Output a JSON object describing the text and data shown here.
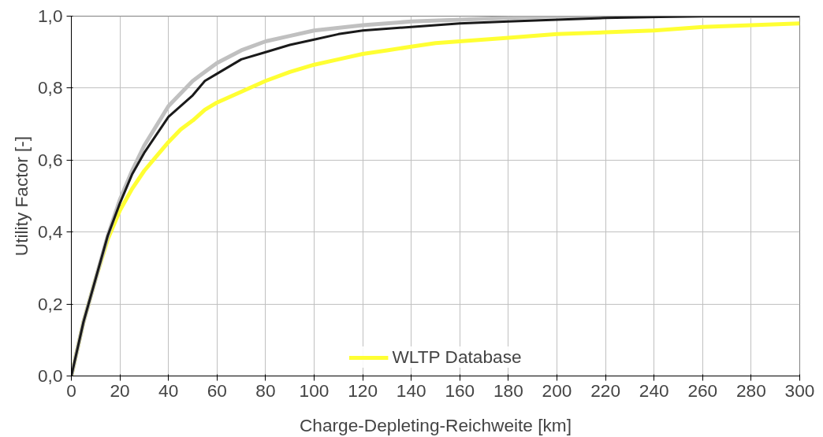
{
  "chart_data": {
    "type": "line",
    "xlabel": "Charge-Depleting-Reichweite [km]",
    "ylabel": "Utility Factor [-]",
    "xlim": [
      0,
      300
    ],
    "ylim": [
      0,
      1
    ],
    "xticks": [
      0,
      20,
      40,
      60,
      80,
      100,
      120,
      140,
      160,
      180,
      200,
      220,
      240,
      260,
      280,
      300
    ],
    "yticks": [
      {
        "value": 0,
        "label": "0,0"
      },
      {
        "value": 0.2,
        "label": "0,2"
      },
      {
        "value": 0.4,
        "label": "0,4"
      },
      {
        "value": 0.6,
        "label": "0,6"
      },
      {
        "value": 0.8,
        "label": "0,8"
      },
      {
        "value": 1,
        "label": "1,0"
      }
    ],
    "grid": true,
    "legend": "bottom",
    "marker": "none",
    "line_style": "solid",
    "series": [
      {
        "name": "WLTP Database",
        "color": "#ffff33",
        "x": [
          0,
          5,
          10,
          15,
          20,
          25,
          30,
          35,
          40,
          45,
          50,
          55,
          60,
          70,
          80,
          90,
          100,
          110,
          120,
          130,
          140,
          150,
          160,
          180,
          200,
          220,
          240,
          260,
          280,
          300
        ],
        "values": [
          0,
          0.15,
          0.27,
          0.38,
          0.46,
          0.52,
          0.57,
          0.61,
          0.65,
          0.685,
          0.71,
          0.74,
          0.76,
          0.79,
          0.82,
          0.845,
          0.865,
          0.88,
          0.895,
          0.905,
          0.915,
          0.925,
          0.93,
          0.94,
          0.95,
          0.955,
          0.96,
          0.97,
          0.975,
          0.98
        ]
      },
      {
        "color": "#c0c0c0",
        "x": [
          0,
          5,
          10,
          15,
          20,
          25,
          30,
          40,
          50,
          60,
          70,
          80,
          90,
          100,
          120,
          140,
          160,
          180,
          200,
          300
        ],
        "values": [
          0,
          0.15,
          0.27,
          0.39,
          0.49,
          0.57,
          0.64,
          0.75,
          0.82,
          0.87,
          0.905,
          0.93,
          0.945,
          0.96,
          0.975,
          0.985,
          0.99,
          0.995,
          1.0,
          1.0
        ]
      },
      {
        "color": "#1a1a1a",
        "x": [
          0,
          5,
          10,
          15,
          20,
          25,
          30,
          40,
          50,
          55,
          60,
          70,
          80,
          90,
          100,
          110,
          120,
          140,
          160,
          180,
          200,
          220,
          260,
          300
        ],
        "values": [
          0,
          0.15,
          0.27,
          0.39,
          0.48,
          0.56,
          0.62,
          0.72,
          0.78,
          0.82,
          0.84,
          0.88,
          0.9,
          0.92,
          0.935,
          0.95,
          0.96,
          0.97,
          0.98,
          0.985,
          0.99,
          0.995,
          1.0,
          1.0
        ]
      }
    ]
  }
}
